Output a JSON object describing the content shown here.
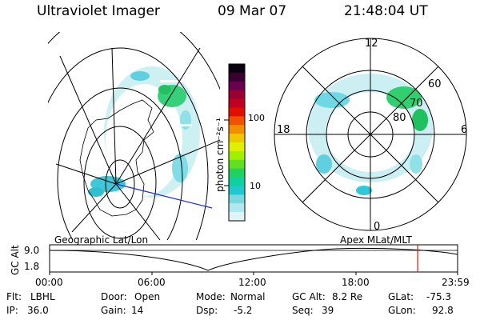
{
  "header": {
    "instrument": "Ultraviolet Imager",
    "date": "09 Mar 07",
    "time": "21:48:04 UT"
  },
  "colorbar": {
    "label": "photon cm⁻²s⁻¹",
    "ticks": [
      "100",
      "10"
    ],
    "colors": [
      "#0a0010",
      "#3a0030",
      "#6a0050",
      "#9a0030",
      "#c00020",
      "#e01000",
      "#f05000",
      "#f09000",
      "#f0c800",
      "#e0f000",
      "#a0f000",
      "#60e020",
      "#20d060",
      "#10d0a0",
      "#20c8d0",
      "#7ad8e0",
      "#b0e8f0",
      "#e0f4f8"
    ]
  },
  "polar_plot": {
    "labels": {
      "top": "12",
      "bottom": "0",
      "left": "18",
      "right": "6",
      "ring_60": "60",
      "ring_70": "70",
      "ring_80": "80"
    }
  },
  "timeline": {
    "y_axis_label": "GC Alt",
    "y_ticks": [
      "9.0",
      "1.8"
    ],
    "x_ticks": [
      "00:00",
      "06:00",
      "12:00",
      "18:00",
      "23:59"
    ],
    "left_label": "Geographic Lat/Lon",
    "right_label": "Apex MLat/MLT",
    "marker_color": "#d02020"
  },
  "info": {
    "flt_label": "Flt:",
    "flt_value": "LBHL",
    "ip_label": "IP:",
    "ip_value": "36.0",
    "door_label": "Door:",
    "door_value": "Open",
    "gain_label": "Gain:",
    "gain_value": "14",
    "mode_label": "Mode:",
    "mode_value": "Normal",
    "dsp_label": "Dsp:",
    "dsp_value": "-5.2",
    "gcalt_label": "GC Alt:",
    "gcalt_value": "8.2 Re",
    "seq_label": "Seq:",
    "seq_value": "39",
    "glat_label": "GLat:",
    "glat_value": "-75.3",
    "glon_label": "GLon:",
    "glon_value": "92.8"
  }
}
